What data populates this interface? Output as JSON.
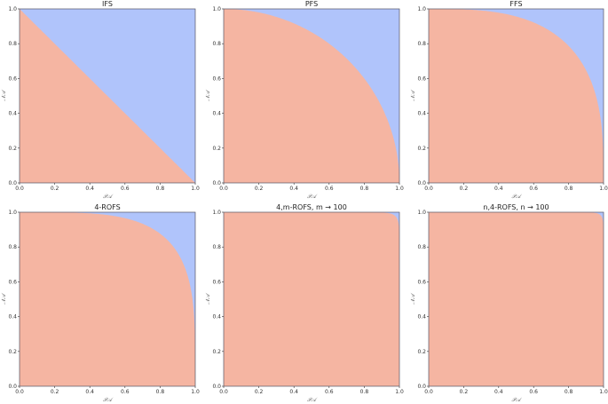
{
  "colors": {
    "inside": "#f5b5a2",
    "outside": "#b0c4fb",
    "frame": "#555566"
  },
  "chart_data": [
    {
      "type": "area",
      "title": "IFS",
      "xlabel": "𝒫𝒜",
      "ylabel": "𝒩𝒜",
      "xlim": [
        0,
        1
      ],
      "ylim": [
        0,
        1
      ],
      "boundary": "x^1 + y^1 = 1",
      "q": 1,
      "xticks": [
        "0.0",
        "0.2",
        "0.4",
        "0.6",
        "0.8",
        "1.0"
      ],
      "yticks": [
        "0.0",
        "0.2",
        "0.4",
        "0.6",
        "0.8",
        "1.0"
      ]
    },
    {
      "type": "area",
      "title": "PFS",
      "xlabel": "𝒫𝒜",
      "ylabel": "𝒩𝒜",
      "xlim": [
        0,
        1
      ],
      "ylim": [
        0,
        1
      ],
      "boundary": "x^2 + y^2 = 1",
      "q": 2,
      "xticks": [
        "0.0",
        "0.2",
        "0.4",
        "0.6",
        "0.8",
        "1.0"
      ],
      "yticks": [
        "0.0",
        "0.2",
        "0.4",
        "0.6",
        "0.8",
        "1.0"
      ]
    },
    {
      "type": "area",
      "title": "FFS",
      "xlabel": "𝒫𝒜",
      "ylabel": "𝒩𝒜",
      "xlim": [
        0,
        1
      ],
      "ylim": [
        0,
        1
      ],
      "boundary": "x^3 + y^3 = 1",
      "q": 3,
      "xticks": [
        "0.0",
        "0.2",
        "0.4",
        "0.6",
        "0.8",
        "1.0"
      ],
      "yticks": [
        "0.0",
        "0.2",
        "0.4",
        "0.6",
        "0.8",
        "1.0"
      ]
    },
    {
      "type": "area",
      "title": "4-ROFS",
      "xlabel": "𝒫𝒜",
      "ylabel": "𝒩𝒜",
      "xlim": [
        0,
        1
      ],
      "ylim": [
        0,
        1
      ],
      "boundary": "x^4 + y^4 = 1",
      "q": 4,
      "xticks": [
        "0.0",
        "0.2",
        "0.4",
        "0.6",
        "0.8",
        "1.0"
      ],
      "yticks": [
        "0.0",
        "0.2",
        "0.4",
        "0.6",
        "0.8",
        "1.0"
      ]
    },
    {
      "type": "area",
      "title": "4,m-ROFS, m → 100",
      "xlabel": "𝒫𝒜",
      "ylabel": "𝒩𝒜",
      "xlim": [
        0,
        1
      ],
      "ylim": [
        0,
        1
      ],
      "boundary": "near-square, small corner at top-right",
      "q": 30,
      "xticks": [
        "0.0",
        "0.2",
        "0.4",
        "0.6",
        "0.8",
        "1.0"
      ],
      "yticks": [
        "0.0",
        "0.2",
        "0.4",
        "0.6",
        "0.8",
        "1.0"
      ]
    },
    {
      "type": "area",
      "title": "n,4-ROFS, n → 100",
      "xlabel": "𝒫𝒜",
      "ylabel": "𝒩𝒜",
      "xlim": [
        0,
        1
      ],
      "ylim": [
        0,
        1
      ],
      "boundary": "near-square, small strip along right edge top",
      "q": 40,
      "xticks": [
        "0.0",
        "0.2",
        "0.4",
        "0.6",
        "0.8",
        "1.0"
      ],
      "yticks": [
        "0.0",
        "0.2",
        "0.4",
        "0.6",
        "0.8",
        "1.0"
      ]
    }
  ]
}
